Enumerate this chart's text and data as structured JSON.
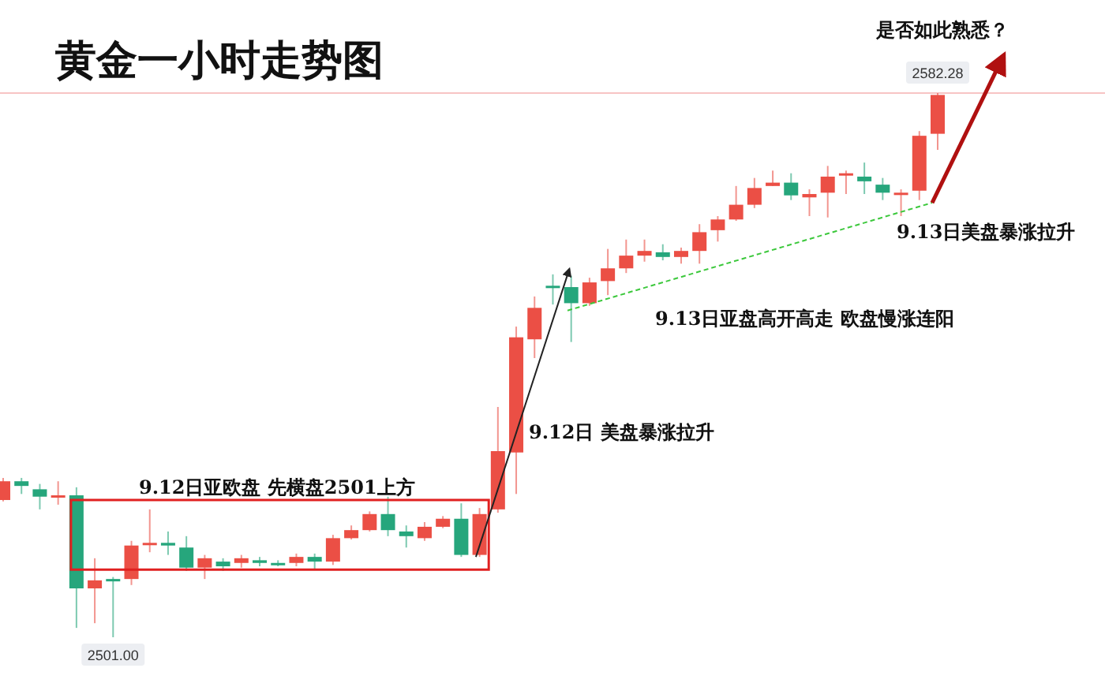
{
  "chart_data": {
    "type": "candlestick",
    "title": "黄金一小时走势图",
    "annotations": [
      "是否如此熟悉？",
      "9.13日美盘暴涨拉升",
      "9.13日亚盘高开高走 欧盘慢涨连阳",
      "9.12日 美盘暴涨拉升",
      "9.12日亚欧盘 先横盘2501上方",
      {
        "text": "2582.28",
        "y": 2582.28
      },
      {
        "text": "2501.00",
        "y": 2501.0
      }
    ],
    "categories": [
      null,
      null,
      null,
      null,
      null,
      null,
      null,
      null,
      null,
      null,
      null,
      null,
      null,
      null,
      null,
      null,
      null,
      null,
      null,
      null,
      null,
      null,
      null,
      null,
      null,
      null,
      null,
      null,
      null,
      null,
      null,
      null,
      null,
      null,
      null,
      null,
      null,
      null,
      null,
      null,
      null,
      null,
      null,
      null,
      null,
      null,
      null,
      null,
      null,
      null,
      null,
      null
    ],
    "ohlc": [
      [
        2521.5,
        2524.8,
        2521.3,
        2524.3
      ],
      [
        2524.3,
        2524.8,
        2522.4,
        2523.6
      ],
      [
        2523.1,
        2523.9,
        2520.1,
        2522.0
      ],
      [
        2522.0,
        2524.3,
        2520.8,
        2522.2
      ],
      [
        2522.2,
        2523.4,
        2502.4,
        2508.3
      ],
      [
        2508.3,
        2512.8,
        2503.1,
        2509.5
      ],
      [
        2509.7,
        2510.0,
        2501.0,
        2509.5
      ],
      [
        2509.7,
        2515.4,
        2508.8,
        2514.7
      ],
      [
        2514.9,
        2520.1,
        2513.7,
        2515.1
      ],
      [
        2515.1,
        2516.8,
        2513.3,
        2514.7
      ],
      [
        2514.4,
        2516.1,
        2510.9,
        2511.4
      ],
      [
        2511.4,
        2513.3,
        2509.7,
        2512.8
      ],
      [
        2512.3,
        2512.8,
        2510.9,
        2511.6
      ],
      [
        2512.1,
        2513.3,
        2511.4,
        2512.8
      ],
      [
        2512.5,
        2513.0,
        2511.6,
        2512.1
      ],
      [
        2512.1,
        2512.5,
        2511.6,
        2511.8
      ],
      [
        2512.1,
        2513.5,
        2511.6,
        2513.0
      ],
      [
        2513.0,
        2513.5,
        2511.1,
        2512.3
      ],
      [
        2512.3,
        2516.3,
        2511.8,
        2515.8
      ],
      [
        2515.8,
        2517.7,
        2515.6,
        2517.0
      ],
      [
        2517.0,
        2519.8,
        2516.8,
        2519.4
      ],
      [
        2519.4,
        2522.0,
        2516.1,
        2517.0
      ],
      [
        2516.8,
        2517.7,
        2514.4,
        2516.1
      ],
      [
        2515.8,
        2518.2,
        2515.4,
        2517.5
      ],
      [
        2517.5,
        2519.1,
        2517.3,
        2518.7
      ],
      [
        2518.7,
        2521.0,
        2513.0,
        2513.3
      ],
      [
        2513.3,
        2520.3,
        2513.0,
        2519.4
      ],
      [
        2520.1,
        2535.4,
        2519.6,
        2528.8
      ],
      [
        2528.6,
        2547.4,
        2522.4,
        2545.8
      ],
      [
        2545.5,
        2551.9,
        2542.7,
        2550.2
      ],
      [
        2553.5,
        2555.2,
        2550.7,
        2553.3
      ],
      [
        2553.3,
        2555.0,
        2545.1,
        2550.9
      ],
      [
        2550.9,
        2554.7,
        2550.5,
        2554.0
      ],
      [
        2554.2,
        2559.0,
        2552.1,
        2556.1
      ],
      [
        2556.1,
        2560.4,
        2555.4,
        2558.0
      ],
      [
        2558.0,
        2560.4,
        2557.1,
        2558.7
      ],
      [
        2558.5,
        2559.7,
        2557.3,
        2557.8
      ],
      [
        2557.8,
        2559.2,
        2556.8,
        2558.7
      ],
      [
        2558.7,
        2562.7,
        2556.8,
        2561.5
      ],
      [
        2561.8,
        2563.9,
        2560.1,
        2563.4
      ],
      [
        2563.4,
        2568.4,
        2563.2,
        2565.6
      ],
      [
        2565.6,
        2569.6,
        2565.1,
        2568.1
      ],
      [
        2568.4,
        2570.7,
        2568.4,
        2568.9
      ],
      [
        2568.9,
        2570.3,
        2566.3,
        2567.0
      ],
      [
        2566.7,
        2567.9,
        2563.9,
        2567.2
      ],
      [
        2567.4,
        2571.4,
        2563.7,
        2569.8
      ],
      [
        2570.0,
        2570.7,
        2567.2,
        2570.3
      ],
      [
        2569.8,
        2571.9,
        2567.2,
        2569.1
      ],
      [
        2568.6,
        2569.6,
        2566.3,
        2567.4
      ],
      [
        2567.2,
        2567.9,
        2563.9,
        2567.4
      ],
      [
        2567.7,
        2576.6,
        2566.3,
        2575.9
      ],
      [
        2576.2,
        2582.28,
        2573.8,
        2582.0
      ]
    ],
    "colors": [
      "#eb4f45",
      "#26a67c",
      "#26a67c",
      "#eb4f45",
      "#26a67c",
      "#eb4f45",
      "#26a67c",
      "#eb4f45",
      "#eb4f45",
      "#26a67c",
      "#26a67c",
      "#eb4f45",
      "#26a67c",
      "#eb4f45",
      "#26a67c",
      "#26a67c",
      "#eb4f45",
      "#26a67c",
      "#eb4f45",
      "#eb4f45",
      "#eb4f45",
      "#26a67c",
      "#26a67c",
      "#eb4f45",
      "#eb4f45",
      "#26a67c",
      "#eb4f45",
      "#eb4f45",
      "#eb4f45",
      "#eb4f45",
      "#26a67c",
      "#26a67c",
      "#eb4f45",
      "#eb4f45",
      "#eb4f45",
      "#eb4f45",
      "#26a67c",
      "#eb4f45",
      "#eb4f45",
      "#eb4f45",
      "#eb4f45",
      "#eb4f45",
      "#eb4f45",
      "#26a67c",
      "#eb4f45",
      "#eb4f45",
      "#eb4f45",
      "#26a67c",
      "#26a67c",
      "#eb4f45",
      "#eb4f45",
      "#eb4f45"
    ],
    "ref_lines": [
      {
        "axis": "y",
        "value": 2582.28,
        "color": "#f7c4c4"
      }
    ]
  }
}
